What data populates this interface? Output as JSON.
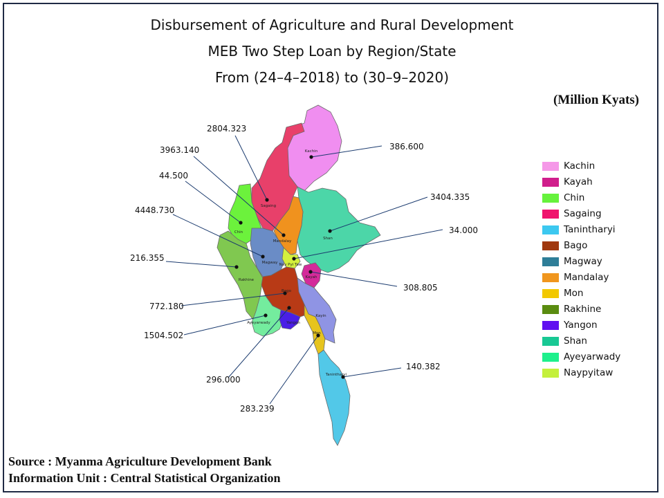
{
  "title": {
    "line1": "Disbursement of Agriculture and Rural Development",
    "line2": "MEB Two Step Loan by Region/State",
    "line3": "From (24–4–2018) to (30–9–2020)"
  },
  "unit": "(Million  Kyats)",
  "source": {
    "line1": "Source : Myanma Agriculture Development Bank",
    "line2": "Information Unit : Central Statistical Organization"
  },
  "regions": [
    {
      "name": "Kachin",
      "label": "Kachin",
      "value": "386.600",
      "color": "#f08ef0"
    },
    {
      "name": "Kayah",
      "label": "Kayah",
      "value": "308.805",
      "color": "#d42a9a"
    },
    {
      "name": "Chin",
      "label": "Chin",
      "value": "44.500",
      "color": "#6cf23c"
    },
    {
      "name": "Sagaing",
      "label": "Sagaing",
      "value": "2804.323",
      "color": "#e8406a"
    },
    {
      "name": "Tanintharyi",
      "label": "Tanintharyi",
      "value": "140.382",
      "color": "#52c8e8"
    },
    {
      "name": "Bago",
      "label": "Bago",
      "value": "772.180",
      "color": "#b83a16"
    },
    {
      "name": "Magway",
      "label": "Magway",
      "value": "4448.730",
      "color": "#6a8cc6"
    },
    {
      "name": "Mandalay",
      "label": "Mandalay",
      "value": "3963.140",
      "color": "#f0921e"
    },
    {
      "name": "Mon",
      "label": "Mon",
      "value": "283.239",
      "color": "#e6c41e"
    },
    {
      "name": "Rakhine",
      "label": "Rakhine",
      "value": "216.355",
      "color": "#80c850"
    },
    {
      "name": "Yangon",
      "label": "Yangon",
      "value": "296.000",
      "color": "#4a1ee6"
    },
    {
      "name": "Shan",
      "label": "Shan",
      "value": "3404.335",
      "color": "#4cd6a8"
    },
    {
      "name": "Ayeyarwady",
      "label": "Ayeyarwady",
      "value": "1504.502",
      "color": "#74ec9e"
    },
    {
      "name": "Naypyitaw",
      "label": "Nay Pyi Taw",
      "value": "34.000",
      "color": "#d4f03c"
    },
    {
      "name": "Kayin",
      "label": "Kayin",
      "value": "",
      "color": "#8f94e4"
    }
  ],
  "legend": [
    {
      "label": "Kachin",
      "color": "#f598e8"
    },
    {
      "label": "Kayah",
      "color": "#d01e8c"
    },
    {
      "label": "Chin",
      "color": "#66f23c"
    },
    {
      "label": "Sagaing",
      "color": "#f0146e"
    },
    {
      "label": "Tanintharyi",
      "color": "#3cc8f0"
    },
    {
      "label": "Bago",
      "color": "#a0380e"
    },
    {
      "label": "Magway",
      "color": "#2e7e98"
    },
    {
      "label": "Mandalay",
      "color": "#f0961e"
    },
    {
      "label": "Mon",
      "color": "#f2c800"
    },
    {
      "label": "Rakhine",
      "color": "#5a8c10"
    },
    {
      "label": "Yangon",
      "color": "#6010f0"
    },
    {
      "label": "Shan",
      "color": "#18c894"
    },
    {
      "label": "Ayeyarwady",
      "color": "#1ef08c"
    },
    {
      "label": "Naypyitaw",
      "color": "#c4f03c"
    }
  ]
}
